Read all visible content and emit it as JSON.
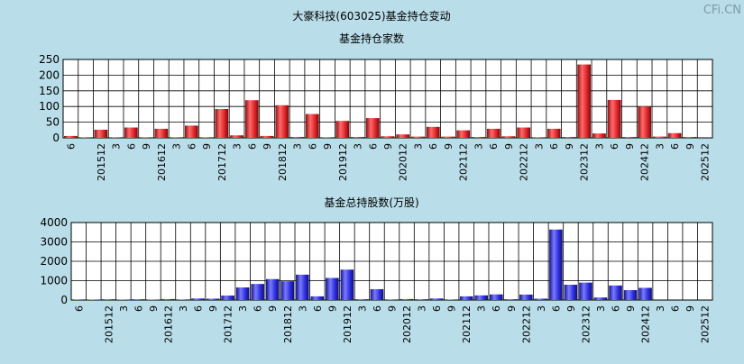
{
  "title": "大豪科技(603025)基金持仓变动",
  "watermark": "CFi.CN",
  "chart_data": [
    {
      "type": "bar",
      "title": "基金持仓家数",
      "ylim": [
        0,
        250
      ],
      "yticks": [
        0,
        50,
        100,
        150,
        200,
        250
      ],
      "grid": true,
      "color": "#e0262b",
      "categories": [
        "201506",
        "201509",
        "201512",
        "201603",
        "201606",
        "201609",
        "201612",
        "201703",
        "201706",
        "201709",
        "201712",
        "201803",
        "201806",
        "201809",
        "201812",
        "201903",
        "201906",
        "201909",
        "201912",
        "202003",
        "202006",
        "202009",
        "202012",
        "202103",
        "202106",
        "202109",
        "202112",
        "202203",
        "202206",
        "202209",
        "202212",
        "202303",
        "202306",
        "202309",
        "202312",
        "202403",
        "202406",
        "202409",
        "202412",
        "202503",
        "202506",
        "202509",
        "202512"
      ],
      "tick_labels": [
        "6",
        "",
        "201512",
        "3",
        "6",
        "9",
        "201612",
        "3",
        "6",
        "9",
        "201712",
        "3",
        "6",
        "9",
        "201812",
        "3",
        "6",
        "9",
        "201912",
        "3",
        "6",
        "9",
        "202012",
        "3",
        "6",
        "9",
        "202112",
        "3",
        "6",
        "9",
        "202212",
        "3",
        "6",
        "9",
        "202312",
        "3",
        "6",
        "9",
        "202412",
        "3",
        "6",
        "9",
        "202512"
      ],
      "values": [
        6,
        2,
        26,
        2,
        33,
        2,
        29,
        2,
        39,
        2,
        92,
        8,
        120,
        6,
        104,
        3,
        76,
        2,
        54,
        3,
        63,
        5,
        11,
        4,
        35,
        4,
        24,
        3,
        29,
        5,
        33,
        2,
        29,
        3,
        234,
        14,
        121,
        3,
        100,
        4,
        15,
        3,
        0
      ]
    },
    {
      "type": "bar",
      "title": "基金总持股数(万股)",
      "ylim": [
        0,
        4000
      ],
      "yticks": [
        0,
        1000,
        2000,
        3000,
        4000
      ],
      "grid": true,
      "color": "#2e2fe0",
      "categories": [
        "201506",
        "201509",
        "201512",
        "201603",
        "201606",
        "201609",
        "201612",
        "201703",
        "201706",
        "201709",
        "201712",
        "201803",
        "201806",
        "201809",
        "201812",
        "201903",
        "201906",
        "201909",
        "201912",
        "202003",
        "202006",
        "202009",
        "202012",
        "202103",
        "202106",
        "202109",
        "202112",
        "202203",
        "202206",
        "202209",
        "202212",
        "202303",
        "202306",
        "202309",
        "202312",
        "202403",
        "202406",
        "202409",
        "202412",
        "202503",
        "202506",
        "202509",
        "202512"
      ],
      "tick_labels": [
        "6",
        "",
        "201512",
        "3",
        "6",
        "9",
        "201612",
        "3",
        "6",
        "9",
        "201712",
        "3",
        "6",
        "9",
        "201812",
        "3",
        "6",
        "9",
        "201912",
        "3",
        "6",
        "9",
        "202012",
        "3",
        "6",
        "9",
        "202112",
        "3",
        "6",
        "9",
        "202212",
        "3",
        "6",
        "9",
        "202312",
        "3",
        "6",
        "9",
        "202412",
        "3",
        "6",
        "9",
        "202512"
      ],
      "values": [
        30,
        20,
        40,
        20,
        40,
        20,
        50,
        30,
        80,
        70,
        230,
        650,
        830,
        1080,
        970,
        1310,
        190,
        1140,
        1570,
        40,
        560,
        30,
        50,
        40,
        80,
        30,
        190,
        240,
        290,
        40,
        280,
        70,
        3640,
        790,
        900,
        130,
        750,
        510,
        630,
        0,
        0,
        0,
        0
      ]
    }
  ]
}
